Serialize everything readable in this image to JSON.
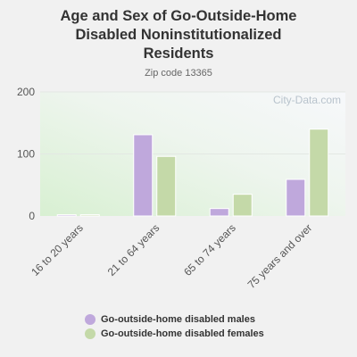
{
  "chart_data": {
    "type": "bar",
    "title": "Age and Sex of Go-Outside-Home\nDisabled Noninstitutionalized\nResidents",
    "subtitle": "Zip code 13365",
    "watermark": "City-Data.com",
    "categories": [
      "16 to 20 years",
      "21 to 64 years",
      "65 to 74 years",
      "75 years and over"
    ],
    "series": [
      {
        "name": "Go-outside-home disabled males",
        "color": "#bfa8dc",
        "values": [
          2,
          131,
          12,
          59
        ]
      },
      {
        "name": "Go-outside-home disabled females",
        "color": "#c4d9a8",
        "values": [
          2,
          96,
          35,
          140
        ]
      }
    ],
    "ylim": [
      0,
      200
    ],
    "yticks": [
      "0",
      "100",
      "200"
    ],
    "grid": true,
    "legend": "bottom"
  }
}
